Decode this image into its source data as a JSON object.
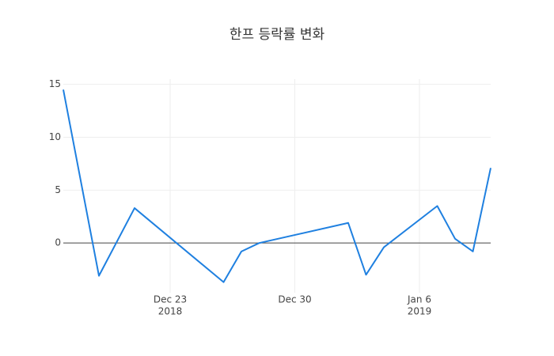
{
  "chart_data": {
    "type": "line",
    "title": "한프 등락률 변화",
    "x": [
      "2018-12-17",
      "2018-12-19",
      "2018-12-21",
      "2018-12-26",
      "2018-12-27",
      "2018-12-28",
      "2019-01-02",
      "2019-01-03",
      "2019-01-04",
      "2019-01-07",
      "2019-01-08",
      "2019-01-09",
      "2019-01-10"
    ],
    "values": [
      14.5,
      -3.1,
      3.3,
      -3.7,
      -0.8,
      0,
      1.9,
      -3.0,
      -0.4,
      3.5,
      0.4,
      -0.8,
      7.1
    ],
    "color": "#1f80e0",
    "xlim": [
      "2018-12-17",
      "2019-01-10"
    ],
    "xticks": [
      {
        "value": "2018-12-23",
        "label": [
          "Dec 23",
          "2018"
        ]
      },
      {
        "value": "2018-12-30",
        "label": [
          "Dec 30"
        ]
      },
      {
        "value": "2019-01-06",
        "label": [
          "Jan 6",
          "2019"
        ]
      }
    ],
    "ylim": [
      -4.7,
      15.5
    ],
    "yticks": [
      0,
      5,
      10,
      15
    ],
    "grid": true
  }
}
